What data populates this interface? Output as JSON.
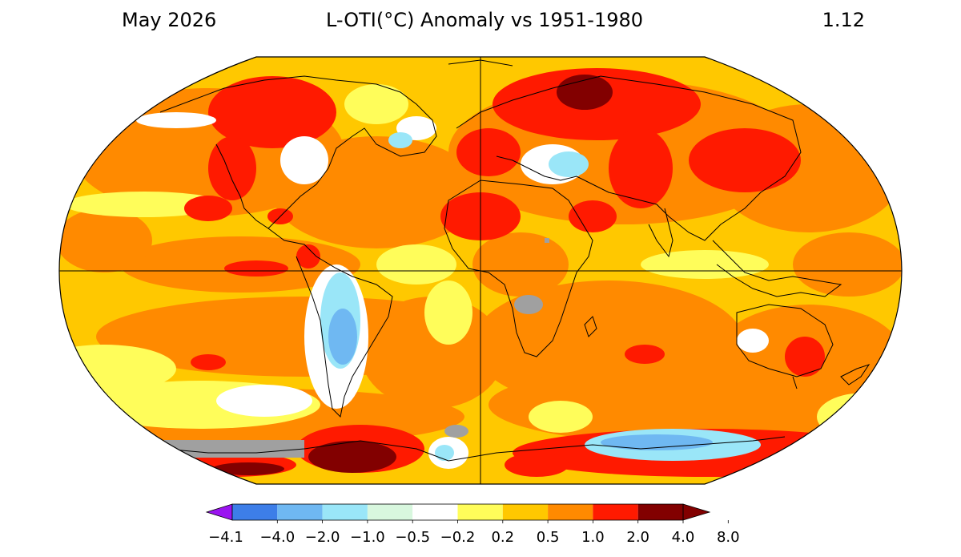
{
  "header": {
    "date_label": "May 2026",
    "title": "L-OTI(°C) Anomaly vs 1951-1980",
    "global_mean": "1.12"
  },
  "colorbar": {
    "tick_labels": [
      "−4.1",
      "−4.0",
      "−2.0",
      "−1.0",
      "−0.5",
      "−0.2",
      "0.2",
      "0.5",
      "1.0",
      "2.0",
      "4.0",
      "8.0"
    ],
    "under_color": "#9a14f0",
    "bin_colors": [
      "#3d7ee8",
      "#6fb8f2",
      "#9ae6f8",
      "#d8f7de",
      "#ffffff",
      "#fffd5a",
      "#ffc800",
      "#ff8a00",
      "#ff1a00",
      "#820000"
    ],
    "over_color": "#820000",
    "missing_color": "#a0a0a0"
  }
}
